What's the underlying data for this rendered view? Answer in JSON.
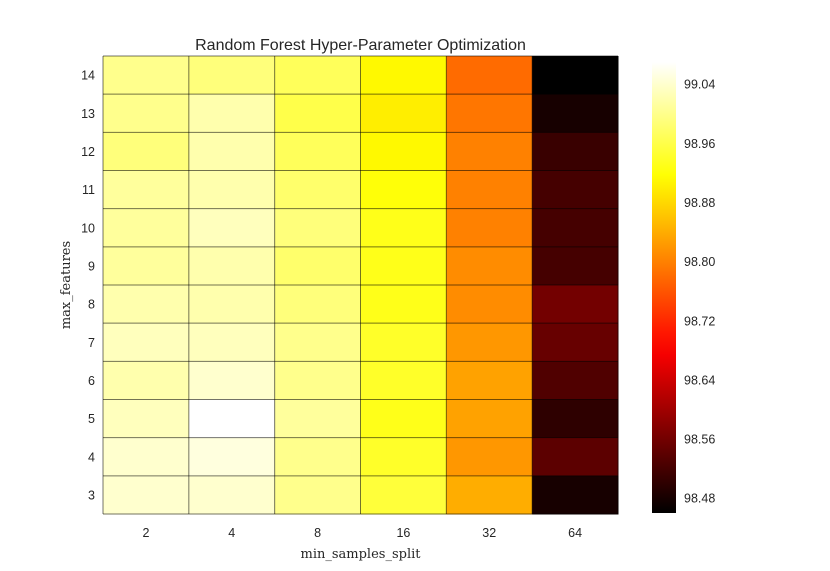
{
  "chart_data": {
    "type": "heatmap",
    "title": "Random Forest Hyper-Parameter Optimization",
    "xlabel": "min_samples_split",
    "ylabel": "max_features",
    "x_categories": [
      "2",
      "4",
      "8",
      "16",
      "32",
      "64"
    ],
    "y_categories": [
      "14",
      "13",
      "12",
      "11",
      "10",
      "9",
      "8",
      "7",
      "6",
      "5",
      "4",
      "3"
    ],
    "values": [
      [
        99.0,
        98.99,
        98.97,
        98.91,
        98.78,
        98.46
      ],
      [
        99.0,
        99.02,
        98.96,
        98.9,
        98.79,
        98.48
      ],
      [
        98.99,
        99.02,
        98.97,
        98.91,
        98.8,
        98.51
      ],
      [
        99.01,
        99.02,
        98.98,
        98.92,
        98.8,
        98.52
      ],
      [
        99.01,
        99.03,
        98.99,
        98.93,
        98.8,
        98.52
      ],
      [
        99.01,
        99.02,
        98.98,
        98.93,
        98.81,
        98.52
      ],
      [
        99.02,
        99.02,
        98.99,
        98.93,
        98.81,
        98.56
      ],
      [
        99.03,
        99.03,
        99.0,
        98.94,
        98.82,
        98.55
      ],
      [
        99.02,
        99.04,
        99.0,
        98.94,
        98.83,
        98.53
      ],
      [
        99.03,
        99.07,
        99.01,
        98.93,
        98.83,
        98.5
      ],
      [
        99.04,
        99.05,
        99.0,
        98.94,
        98.82,
        98.54
      ],
      [
        99.04,
        99.04,
        99.0,
        98.95,
        98.84,
        98.48
      ]
    ],
    "colormap": "hot",
    "vmin": 98.46,
    "vmax": 99.07,
    "colorbar_ticks": [
      "98.48",
      "98.56",
      "98.64",
      "98.72",
      "98.80",
      "98.88",
      "98.96",
      "99.04"
    ],
    "grid": true,
    "gridline_color": "#000000",
    "background": "#ffffff"
  }
}
